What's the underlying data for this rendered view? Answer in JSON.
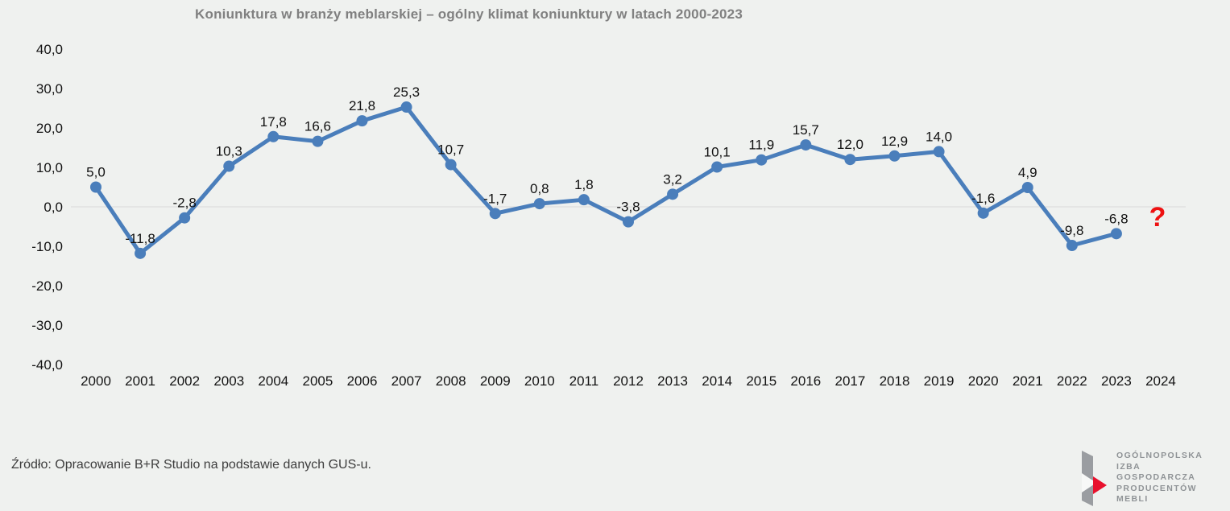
{
  "title": "Koniunktura w branży meblarskiej – ogólny klimat koniunktury w latach 2000-2023",
  "source": "Źródło: Opracowanie B+R Studio na podstawie danych GUS-u.",
  "colors": {
    "background": "#eff1ef",
    "line": "#4a7ebb",
    "marker": "#4a7ebb",
    "gridline": "#d9d9d9",
    "title_text": "#808080",
    "question_mark": "#ee1111",
    "logo_gray": "#9a9da1",
    "logo_red": "#e8112d"
  },
  "chart_data": {
    "type": "line",
    "title": "Koniunktura w branży meblarskiej – ogólny klimat koniunktury w latach 2000-2023",
    "x": [
      2000,
      2001,
      2002,
      2003,
      2004,
      2005,
      2006,
      2007,
      2008,
      2009,
      2010,
      2011,
      2012,
      2013,
      2014,
      2015,
      2016,
      2017,
      2018,
      2019,
      2020,
      2021,
      2022,
      2023
    ],
    "values": [
      5.0,
      -11.8,
      -2.8,
      10.3,
      17.8,
      16.6,
      21.8,
      25.3,
      10.7,
      -1.7,
      0.8,
      1.8,
      -3.8,
      3.2,
      10.1,
      11.9,
      15.7,
      12.0,
      12.9,
      14.0,
      -1.6,
      4.9,
      -9.8,
      -6.8
    ],
    "point_labels": [
      "5,0",
      "-11,8",
      "-2,8",
      "10,3",
      "17,8",
      "16,6",
      "21,8",
      "25,3",
      "10,7",
      "-1,7",
      "0,8",
      "1,8",
      "-3,8",
      "3,2",
      "10,1",
      "11,9",
      "15,7",
      "12,0",
      "12,9",
      "14,0",
      "-1,6",
      "4,9",
      "-9,8",
      "-6,8"
    ],
    "future_year": "2024",
    "future_label": "?",
    "xticks": [
      "2000",
      "2001",
      "2002",
      "2003",
      "2004",
      "2005",
      "2006",
      "2007",
      "2008",
      "2009",
      "2010",
      "2011",
      "2012",
      "2013",
      "2014",
      "2015",
      "2016",
      "2017",
      "2018",
      "2019",
      "2020",
      "2021",
      "2022",
      "2023",
      "2024"
    ],
    "ytick_labels": [
      "40,0",
      "30,0",
      "20,0",
      "10,0",
      "0,0",
      "-10,0",
      "-20,0",
      "-30,0",
      "-40,0"
    ],
    "ylim": [
      -40,
      40
    ],
    "ytick_step": 10,
    "grid": "zero-line-only",
    "legend": "none",
    "xlabel": "",
    "ylabel": ""
  },
  "logo": {
    "lines": [
      "OGÓLNOPOLSKA",
      "IZBA",
      "GOSPODARCZA",
      "PRODUCENTÓW",
      "MEBLI"
    ]
  }
}
